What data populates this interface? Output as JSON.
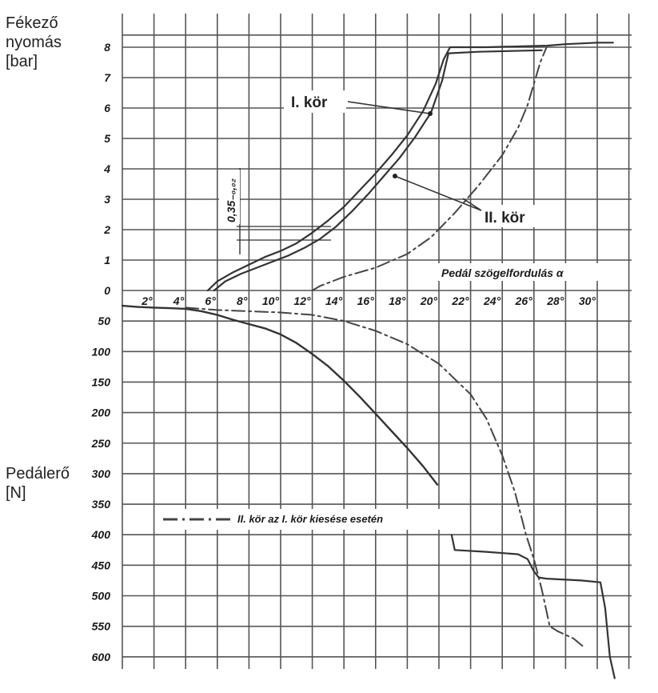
{
  "labels": {
    "y_top": [
      "Fékező",
      "nyomás",
      "[bar]"
    ],
    "y_bottom": [
      "Pedálerő",
      "[N]"
    ],
    "x_axis": "Pedál szögelfordulás α",
    "tolerance": "0,35₋₀,₀₂",
    "circuit1": "I. kör",
    "circuit2": "II. kör",
    "legend": "II. kör az I. kör kiesése esetén"
  },
  "colors": {
    "grid": "#555555",
    "curve": "#333333",
    "dashed": "#444444",
    "text": "#1a1a1a"
  },
  "chart_data": {
    "type": "line",
    "x": {
      "label": "Pedál szögelfordulás α",
      "unit": "°",
      "ticks": [
        2,
        4,
        6,
        8,
        10,
        12,
        14,
        16,
        18,
        20,
        22,
        24,
        26,
        28,
        30
      ],
      "tick_labels": [
        "2°",
        "4°",
        "6°",
        "8°",
        "10°",
        "12°",
        "14°",
        "16°",
        "18°",
        "20°",
        "22°",
        "24°",
        "26°",
        "28°",
        "30°"
      ],
      "range": [
        0,
        32
      ]
    },
    "y_upper": {
      "label": "Fékező nyomás [bar]",
      "ticks": [
        0,
        1,
        2,
        3,
        4,
        5,
        6,
        7,
        8
      ],
      "range": [
        0,
        8.4
      ]
    },
    "y_lower": {
      "label": "Pedálerő [N]",
      "ticks": [
        50,
        100,
        150,
        200,
        250,
        300,
        350,
        400,
        450,
        500,
        550,
        600
      ],
      "range": [
        0,
        620
      ]
    },
    "series": [
      {
        "name": "I. kör",
        "panel": "pressure",
        "style": "solid",
        "x": [
          5.4,
          6,
          7,
          8,
          9,
          10,
          11,
          12,
          13,
          14,
          15,
          16,
          17,
          18,
          19,
          19.8,
          20.3,
          20.7,
          23,
          26.7
        ],
        "y": [
          0,
          0.3,
          0.6,
          0.85,
          1.1,
          1.3,
          1.55,
          1.9,
          2.3,
          2.75,
          3.3,
          3.85,
          4.45,
          5.1,
          5.9,
          6.8,
          7.6,
          8,
          8,
          8.05
        ]
      },
      {
        "name": "I. kör",
        "panel": "pressure",
        "style": "solid",
        "x": [
          5.8,
          6.5,
          7.5,
          8.5,
          9.5,
          10.5,
          11.5,
          12.5,
          13.5,
          14.5,
          15.5,
          16.5,
          17.5,
          18.5,
          19.5,
          20.2,
          20.6,
          22.5,
          26.5
        ],
        "y": [
          0,
          0.3,
          0.55,
          0.75,
          0.95,
          1.15,
          1.4,
          1.7,
          2.1,
          2.6,
          3.15,
          3.75,
          4.35,
          5.05,
          5.85,
          6.9,
          7.8,
          7.85,
          7.9
        ]
      },
      {
        "name": "II. kör",
        "panel": "pressure",
        "style": "dashdot",
        "x": [
          12,
          12.5,
          14,
          16,
          18,
          19.5,
          21,
          22.5,
          24,
          25,
          25.6,
          26,
          26.4,
          26.8
        ],
        "y": [
          0,
          0.15,
          0.45,
          0.75,
          1.2,
          1.75,
          2.55,
          3.45,
          4.45,
          5.35,
          6.1,
          6.8,
          7.5,
          8
        ]
      },
      {
        "name": "",
        "panel": "pressure",
        "style": "solid",
        "x": [
          26.8,
          28,
          30,
          31
        ],
        "y": [
          8.05,
          8.1,
          8.15,
          8.15
        ]
      },
      {
        "name": "",
        "panel": "force",
        "style": "solid",
        "x": [
          0,
          1,
          2,
          3,
          4,
          5,
          6,
          7,
          8,
          9,
          10,
          11,
          12,
          13,
          14,
          15,
          16,
          17,
          18,
          19,
          19.9
        ],
        "y": [
          25,
          27,
          28,
          29,
          30,
          34,
          40,
          48,
          55,
          62,
          72,
          86,
          104,
          124,
          148,
          174,
          202,
          230,
          258,
          288,
          318
        ]
      },
      {
        "name": "",
        "panel": "force",
        "style": "dashdot",
        "x": [
          4,
          6,
          8,
          10,
          12,
          14,
          16,
          18,
          20,
          22,
          23,
          24,
          24.8,
          25.5,
          26,
          26.5,
          27,
          27.5,
          28.5,
          29.2
        ],
        "y": [
          28,
          32,
          34,
          36,
          40,
          50,
          66,
          88,
          120,
          170,
          210,
          270,
          330,
          400,
          440,
          490,
          550,
          558,
          570,
          585
        ]
      },
      {
        "name": "",
        "panel": "force",
        "style": "solid",
        "x": [
          20.8,
          21,
          23,
          25,
          25.6,
          26,
          26.3,
          26.8,
          29,
          30.2,
          30.5,
          30.8,
          31.1
        ],
        "y": [
          400,
          425,
          428,
          432,
          440,
          460,
          470,
          472,
          475,
          478,
          520,
          600,
          635
        ]
      }
    ],
    "annotations": [
      {
        "text": "I. kör",
        "x": 11.4,
        "y": 6.2
      },
      {
        "text": "II. kör",
        "x": 22.5,
        "y": 2.1
      },
      {
        "text": "0,35₋₀,₀₂",
        "x": 7,
        "y": 2.6
      }
    ],
    "legend": {
      "text": "II. kör az I. kör kiesése esetén",
      "style": "dashdot",
      "placement": "lower-middle"
    },
    "grid": true
  }
}
